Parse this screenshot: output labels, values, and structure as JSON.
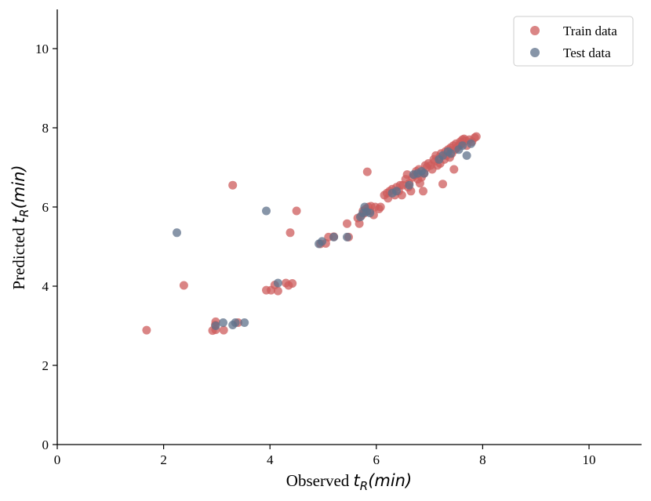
{
  "chart_data": {
    "type": "scatter",
    "xlabel": {
      "prefix": "Observed ",
      "symbol": "t",
      "sub": "R",
      "unit": "(min)"
    },
    "ylabel": {
      "prefix": "Predicted ",
      "symbol": "t",
      "sub": "R",
      "unit": "(min)"
    },
    "xlim": [
      0,
      11
    ],
    "ylim": [
      0,
      11
    ],
    "xticks": [
      "0",
      "2",
      "4",
      "6",
      "8",
      "10"
    ],
    "yticks": [
      "0",
      "2",
      "4",
      "6",
      "8",
      "10"
    ],
    "grid": false,
    "legend_position": "top-right",
    "series": [
      {
        "name": "Train data",
        "color": "#cd5c5c",
        "points": [
          [
            1.68,
            2.89
          ],
          [
            2.38,
            4.02
          ],
          [
            3.3,
            6.55
          ],
          [
            2.92,
            2.88
          ],
          [
            2.98,
            2.9
          ],
          [
            2.97,
            3.02
          ],
          [
            2.98,
            3.1
          ],
          [
            3.13,
            2.89
          ],
          [
            3.4,
            3.08
          ],
          [
            3.93,
            3.9
          ],
          [
            4.02,
            3.9
          ],
          [
            4.09,
            4.03
          ],
          [
            4.15,
            3.88
          ],
          [
            4.3,
            4.08
          ],
          [
            4.35,
            4.02
          ],
          [
            4.42,
            4.07
          ],
          [
            4.38,
            5.35
          ],
          [
            4.5,
            5.9
          ],
          [
            4.95,
            5.07
          ],
          [
            5.05,
            5.08
          ],
          [
            5.1,
            5.24
          ],
          [
            5.2,
            5.25
          ],
          [
            5.45,
            5.58
          ],
          [
            5.48,
            5.24
          ],
          [
            5.65,
            5.72
          ],
          [
            5.68,
            5.58
          ],
          [
            5.72,
            5.78
          ],
          [
            5.75,
            5.9
          ],
          [
            5.78,
            5.85
          ],
          [
            5.8,
            5.95
          ],
          [
            5.85,
            6.0
          ],
          [
            5.88,
            5.9
          ],
          [
            5.9,
            6.02
          ],
          [
            5.95,
            5.8
          ],
          [
            5.98,
            6.0
          ],
          [
            6.05,
            5.95
          ],
          [
            6.08,
            6.0
          ],
          [
            5.83,
            6.89
          ],
          [
            6.15,
            6.3
          ],
          [
            6.2,
            6.35
          ],
          [
            6.22,
            6.22
          ],
          [
            6.25,
            6.4
          ],
          [
            6.3,
            6.45
          ],
          [
            6.35,
            6.3
          ],
          [
            6.38,
            6.5
          ],
          [
            6.42,
            6.4
          ],
          [
            6.45,
            6.55
          ],
          [
            6.48,
            6.3
          ],
          [
            6.5,
            6.55
          ],
          [
            6.55,
            6.7
          ],
          [
            6.58,
            6.82
          ],
          [
            6.6,
            6.5
          ],
          [
            6.62,
            6.6
          ],
          [
            6.65,
            6.4
          ],
          [
            6.68,
            6.75
          ],
          [
            6.72,
            6.8
          ],
          [
            6.75,
            6.9
          ],
          [
            6.78,
            6.7
          ],
          [
            6.8,
            6.95
          ],
          [
            6.82,
            6.6
          ],
          [
            6.85,
            6.75
          ],
          [
            6.88,
            6.4
          ],
          [
            6.9,
            6.85
          ],
          [
            6.92,
            7.05
          ],
          [
            6.95,
            7.0
          ],
          [
            6.98,
            7.1
          ],
          [
            7.02,
            7.05
          ],
          [
            7.05,
            6.95
          ],
          [
            7.08,
            7.2
          ],
          [
            7.1,
            7.15
          ],
          [
            7.12,
            7.3
          ],
          [
            7.15,
            7.05
          ],
          [
            7.18,
            7.25
          ],
          [
            7.2,
            7.1
          ],
          [
            7.22,
            7.35
          ],
          [
            7.25,
            6.58
          ],
          [
            7.28,
            7.2
          ],
          [
            7.3,
            7.4
          ],
          [
            7.32,
            7.3
          ],
          [
            7.35,
            7.45
          ],
          [
            7.38,
            7.25
          ],
          [
            7.4,
            7.5
          ],
          [
            7.42,
            7.35
          ],
          [
            7.45,
            7.55
          ],
          [
            7.46,
            6.95
          ],
          [
            7.48,
            7.45
          ],
          [
            7.5,
            7.6
          ],
          [
            7.52,
            7.5
          ],
          [
            7.55,
            7.55
          ],
          [
            7.58,
            7.65
          ],
          [
            7.6,
            7.6
          ],
          [
            7.62,
            7.7
          ],
          [
            7.65,
            7.72
          ],
          [
            7.68,
            7.68
          ],
          [
            7.7,
            7.55
          ],
          [
            7.75,
            7.7
          ],
          [
            7.8,
            7.65
          ],
          [
            7.85,
            7.75
          ],
          [
            7.88,
            7.78
          ]
        ]
      },
      {
        "name": "Test data",
        "color": "#5f718b",
        "points": [
          [
            2.25,
            5.35
          ],
          [
            2.98,
            3.0
          ],
          [
            3.12,
            3.08
          ],
          [
            3.3,
            3.02
          ],
          [
            3.35,
            3.08
          ],
          [
            3.52,
            3.08
          ],
          [
            3.93,
            5.9
          ],
          [
            4.15,
            4.08
          ],
          [
            4.92,
            5.07
          ],
          [
            4.98,
            5.13
          ],
          [
            5.2,
            5.24
          ],
          [
            5.45,
            5.24
          ],
          [
            5.7,
            5.75
          ],
          [
            5.75,
            5.85
          ],
          [
            5.78,
            6.0
          ],
          [
            5.82,
            5.88
          ],
          [
            5.88,
            5.85
          ],
          [
            6.3,
            6.35
          ],
          [
            6.38,
            6.4
          ],
          [
            6.62,
            6.55
          ],
          [
            6.7,
            6.82
          ],
          [
            6.78,
            6.85
          ],
          [
            6.85,
            6.9
          ],
          [
            6.9,
            6.85
          ],
          [
            7.18,
            7.2
          ],
          [
            7.25,
            7.3
          ],
          [
            7.35,
            7.4
          ],
          [
            7.4,
            7.35
          ],
          [
            7.55,
            7.45
          ],
          [
            7.62,
            7.55
          ],
          [
            7.7,
            7.3
          ],
          [
            7.78,
            7.6
          ]
        ]
      }
    ]
  }
}
